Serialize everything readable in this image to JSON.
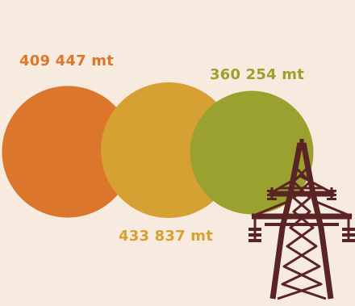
{
  "colors": {
    "background": "#f7ebdf",
    "series": [
      "#dd762d",
      "#d6a033",
      "#9aa12e"
    ],
    "tower": "#5b2424"
  },
  "chart_data": {
    "type": "bubble",
    "values": [
      409447,
      433837,
      360254
    ],
    "value_labels": [
      "409 447 mt",
      "433 837 mt",
      "360 254 mt"
    ]
  },
  "icons": {
    "tower": "electricity-pylon-icon"
  }
}
